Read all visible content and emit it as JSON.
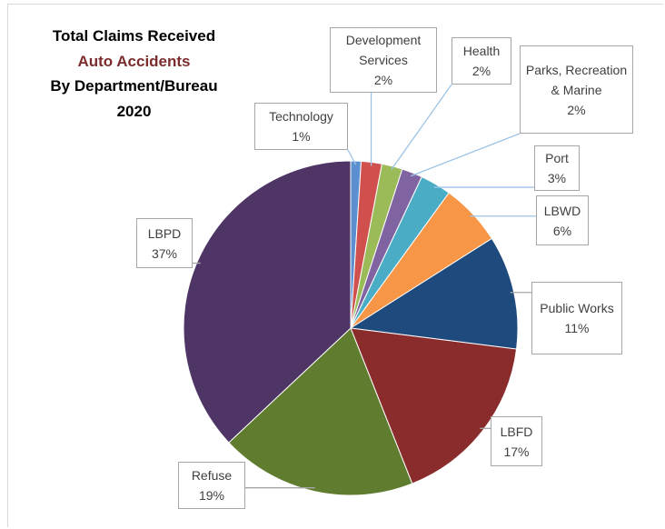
{
  "chart_data": {
    "type": "pie",
    "title": [
      "Total Claims Received",
      "Auto Accidents",
      "By Department/Bureau",
      "2020"
    ],
    "categories": [
      "Technology",
      "Development Services",
      "Health",
      "Parks, Recreation & Marine",
      "Port",
      "LBWD",
      "Public Works",
      "LBFD",
      "Refuse",
      "LBPD"
    ],
    "values": [
      1,
      2,
      2,
      2,
      3,
      6,
      11,
      17,
      19,
      37
    ],
    "value_labels": [
      "1%",
      "2%",
      "2%",
      "2%",
      "3%",
      "6%",
      "11%",
      "17%",
      "19%",
      "37%"
    ],
    "colors": [
      "#5b8fd0",
      "#d0504d",
      "#9bbb59",
      "#8064a2",
      "#4bacc6",
      "#f79646",
      "#1f4a7d",
      "#8a2c2c",
      "#5f7c2f",
      "#4e3566"
    ],
    "title_colors": [
      "#000000",
      "#7b2c2c",
      "#000000",
      "#000000"
    ]
  }
}
